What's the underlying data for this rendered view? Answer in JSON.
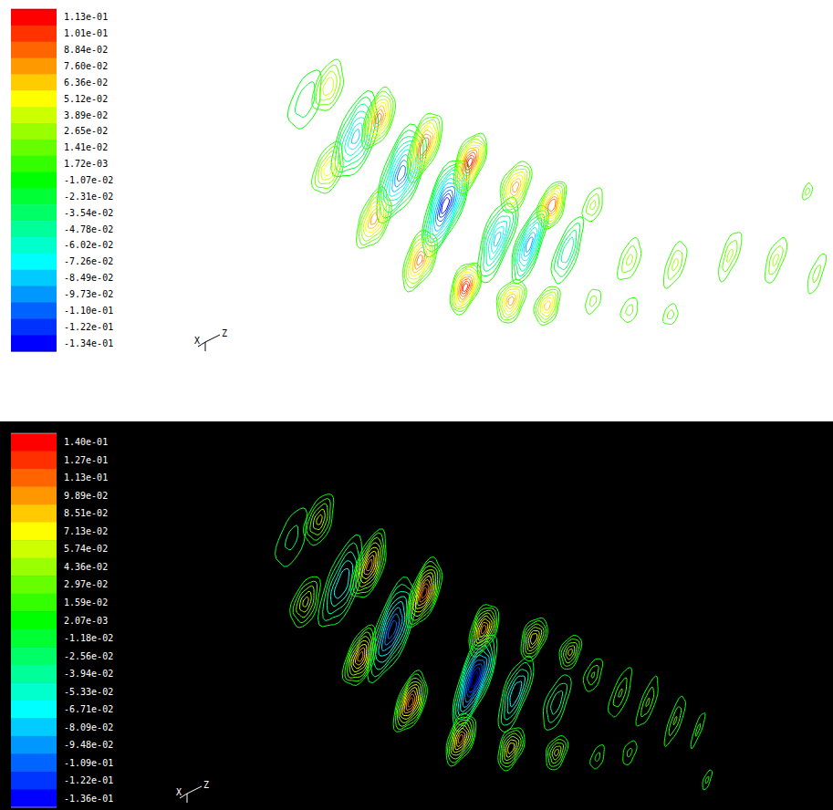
{
  "chart_data": [
    {
      "type": "contour",
      "tick_labels": false,
      "triad": [
        "X",
        "Z"
      ],
      "xlim": [
        0,
        620
      ],
      "ylim": [
        0,
        345
      ],
      "colorbar": {
        "range": [
          -0.134,
          0.113
        ],
        "ticks": [
          {
            "value": 0.113,
            "label": "1.13e-01"
          },
          {
            "value": 0.101,
            "label": "1.01e-01"
          },
          {
            "value": 0.0884,
            "label": "8.84e-02"
          },
          {
            "value": 0.076,
            "label": "7.60e-02"
          },
          {
            "value": 0.0636,
            "label": "6.36e-02"
          },
          {
            "value": 0.0512,
            "label": "5.12e-02"
          },
          {
            "value": 0.0389,
            "label": "3.89e-02"
          },
          {
            "value": 0.0265,
            "label": "2.65e-02"
          },
          {
            "value": 0.0141,
            "label": "1.41e-02"
          },
          {
            "value": 0.00172,
            "label": "1.72e-03"
          },
          {
            "value": -0.0107,
            "label": "-1.07e-02"
          },
          {
            "value": -0.0231,
            "label": "-2.31e-02"
          },
          {
            "value": -0.0354,
            "label": "-3.54e-02"
          },
          {
            "value": -0.0478,
            "label": "-4.78e-02"
          },
          {
            "value": -0.0602,
            "label": "-6.02e-02"
          },
          {
            "value": -0.0726,
            "label": "-7.26e-02"
          },
          {
            "value": -0.0849,
            "label": "-8.49e-02"
          },
          {
            "value": -0.0973,
            "label": "-9.73e-02"
          },
          {
            "value": -0.11,
            "label": "-1.10e-01"
          },
          {
            "value": -0.122,
            "label": "-1.22e-01"
          },
          {
            "value": -0.134,
            "label": "-1.34e-01"
          }
        ]
      },
      "contours": {
        "x": [
          45,
          100,
          150,
          198,
          255,
          290,
          332,
          70,
          125,
          175,
          225,
          275,
          315,
          70,
          120,
          170,
          220,
          270,
          310,
          360,
          400,
          450,
          510,
          560,
          605,
          400,
          445,
          595,
          360
        ],
        "y": [
          275,
          235,
          195,
          160,
          123,
          117,
          110,
          290,
          255,
          225,
          207,
          180,
          160,
          200,
          145,
          100,
          70,
          55,
          50,
          160,
          100,
          95,
          105,
          100,
          85,
          45,
          40,
          175,
          55
        ],
        "values": [
          -0.035,
          -0.085,
          -0.11,
          -0.134,
          -0.085,
          -0.1,
          -0.06,
          0.05,
          0.09,
          0.1,
          0.113,
          0.08,
          0.1,
          0.06,
          0.08,
          0.09,
          0.113,
          0.08,
          0.07,
          0.03,
          0.03,
          0.03,
          0.03,
          0.03,
          0.02,
          0.02,
          0.02,
          0.02,
          0.02
        ],
        "width": [
          40,
          45,
          45,
          40,
          35,
          30,
          28,
          30,
          30,
          30,
          30,
          30,
          28,
          30,
          32,
          32,
          30,
          30,
          26,
          20,
          22,
          20,
          18,
          18,
          14,
          18,
          16,
          10,
          16
        ],
        "height": [
          90,
          110,
          120,
          120,
          110,
          100,
          90,
          60,
          70,
          80,
          70,
          60,
          55,
          60,
          70,
          70,
          60,
          50,
          45,
          40,
          50,
          55,
          60,
          55,
          50,
          30,
          25,
          20,
          30
        ]
      }
    },
    {
      "type": "contour",
      "tick_labels": false,
      "triad": [
        "X",
        "Z"
      ],
      "xlim": [
        0,
        620
      ],
      "ylim": [
        0,
        380
      ],
      "colorbar": {
        "range": [
          -0.136,
          0.14
        ],
        "ticks": [
          {
            "value": 0.14,
            "label": "1.40e-01"
          },
          {
            "value": 0.127,
            "label": "1.27e-01"
          },
          {
            "value": 0.113,
            "label": "1.13e-01"
          },
          {
            "value": 0.0989,
            "label": "9.89e-02"
          },
          {
            "value": 0.0851,
            "label": "8.51e-02"
          },
          {
            "value": 0.0713,
            "label": "7.13e-02"
          },
          {
            "value": 0.0574,
            "label": "5.74e-02"
          },
          {
            "value": 0.0436,
            "label": "4.36e-02"
          },
          {
            "value": 0.0297,
            "label": "2.97e-02"
          },
          {
            "value": 0.0159,
            "label": "1.59e-02"
          },
          {
            "value": 0.00207,
            "label": "2.07e-03"
          },
          {
            "value": -0.0118,
            "label": "-1.18e-02"
          },
          {
            "value": -0.0256,
            "label": "-2.56e-02"
          },
          {
            "value": -0.0394,
            "label": "-3.94e-02"
          },
          {
            "value": -0.0533,
            "label": "-5.33e-02"
          },
          {
            "value": -0.0671,
            "label": "-6.71e-02"
          },
          {
            "value": -0.0809,
            "label": "-8.09e-02"
          },
          {
            "value": -0.0948,
            "label": "-9.48e-02"
          },
          {
            "value": -0.109,
            "label": "-1.09e-01"
          },
          {
            "value": -0.122,
            "label": "-1.22e-01"
          },
          {
            "value": -0.136,
            "label": "-1.36e-01"
          }
        ]
      },
      "contours": {
        "x": [
          30,
          85,
          140,
          230,
          275,
          320,
          60,
          115,
          175,
          240,
          295,
          335,
          45,
          105,
          160,
          215,
          270,
          320,
          360,
          390,
          420,
          450,
          475,
          400,
          485,
          365
        ],
        "y": [
          290,
          240,
          190,
          135,
          120,
          110,
          310,
          260,
          230,
          190,
          180,
          165,
          220,
          160,
          110,
          70,
          60,
          55,
          140,
          120,
          110,
          90,
          80,
          55,
          25,
          50
        ],
        "values": [
          -0.03,
          -0.08,
          -0.11,
          -0.136,
          -0.08,
          -0.05,
          0.06,
          0.1,
          0.113,
          0.1,
          0.08,
          0.06,
          0.06,
          0.1,
          0.113,
          0.1,
          0.08,
          0.06,
          0.03,
          0.03,
          0.03,
          0.03,
          0.02,
          0.02,
          0.02,
          0.02
        ],
        "width": [
          40,
          40,
          40,
          35,
          30,
          28,
          28,
          30,
          30,
          28,
          26,
          22,
          28,
          30,
          30,
          28,
          26,
          22,
          18,
          18,
          16,
          14,
          8,
          14,
          8,
          14
        ],
        "height": [
          100,
          120,
          130,
          120,
          100,
          80,
          60,
          80,
          80,
          60,
          50,
          40,
          60,
          70,
          70,
          60,
          50,
          40,
          40,
          60,
          60,
          60,
          45,
          30,
          25,
          30
        ]
      }
    }
  ]
}
